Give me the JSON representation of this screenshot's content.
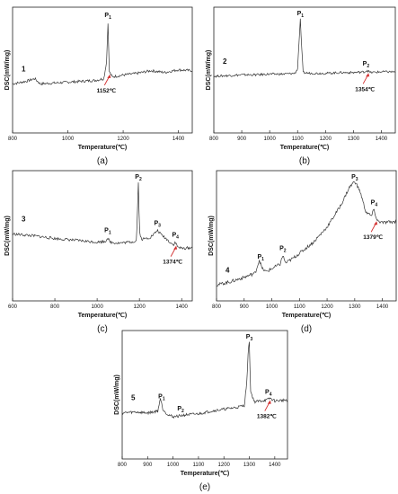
{
  "chart_data": [
    {
      "type": "line",
      "panel_label": "(a)",
      "series_label": "1",
      "xlabel": "Temperature(℃)",
      "ylabel": "DSC(mW/mg)",
      "xlim": [
        800,
        1450
      ],
      "xticks": [
        "800",
        "1000",
        "1200",
        "1400"
      ],
      "peaks": [
        {
          "label": "P1",
          "x": 1145,
          "sub": "1"
        }
      ],
      "annotations": [
        {
          "text": "1152℃",
          "x": 1152
        }
      ],
      "series": [
        {
          "x": [
            800,
            850,
            880,
            900,
            950,
            1000,
            1050,
            1100,
            1130,
            1140,
            1145,
            1150,
            1160,
            1200,
            1250,
            1300,
            1350,
            1400,
            1450
          ],
          "y": [
            0.3,
            0.33,
            0.36,
            0.3,
            0.31,
            0.32,
            0.33,
            0.34,
            0.36,
            0.55,
            1.0,
            0.44,
            0.38,
            0.4,
            0.42,
            0.45,
            0.43,
            0.46,
            0.45
          ]
        }
      ]
    },
    {
      "type": "line",
      "panel_label": "(b)",
      "series_label": "2",
      "xlabel": "Temperature(℃)",
      "ylabel": "DSC(mW/mg)",
      "xlim": [
        800,
        1450
      ],
      "xticks": [
        "800",
        "900",
        "1000",
        "1100",
        "1200",
        "1300",
        "1400"
      ],
      "peaks": [
        {
          "label": "P1",
          "x": 1110,
          "sub": "1"
        },
        {
          "label": "P2",
          "x": 1345,
          "sub": "2"
        }
      ],
      "annotations": [
        {
          "text": "1354℃",
          "x": 1354
        }
      ],
      "series": [
        {
          "x": [
            800,
            850,
            900,
            950,
            1000,
            1050,
            1090,
            1100,
            1105,
            1110,
            1115,
            1120,
            1150,
            1200,
            1250,
            1300,
            1340,
            1350,
            1360,
            1400,
            1450
          ],
          "y": [
            0.25,
            0.26,
            0.27,
            0.27,
            0.28,
            0.28,
            0.29,
            0.35,
            0.7,
            1.0,
            0.6,
            0.3,
            0.29,
            0.29,
            0.3,
            0.3,
            0.31,
            0.33,
            0.3,
            0.31,
            0.31
          ]
        }
      ]
    },
    {
      "type": "line",
      "panel_label": "(c)",
      "series_label": "3",
      "xlabel": "Temperature(℃)",
      "ylabel": "DSC(mW/mg)",
      "xlim": [
        600,
        1450
      ],
      "xticks": [
        "600",
        "800",
        "1000",
        "1200",
        "1400"
      ],
      "peaks": [
        {
          "label": "P1",
          "x": 1050,
          "sub": "1"
        },
        {
          "label": "P2",
          "x": 1195,
          "sub": "2"
        },
        {
          "label": "P3",
          "x": 1285,
          "sub": "3"
        },
        {
          "label": "P4",
          "x": 1370,
          "sub": "4"
        }
      ],
      "annotations": [
        {
          "text": "1374℃",
          "x": 1374
        }
      ],
      "series": [
        {
          "x": [
            600,
            700,
            800,
            900,
            1000,
            1040,
            1050,
            1060,
            1100,
            1150,
            1185,
            1190,
            1195,
            1200,
            1210,
            1250,
            1270,
            1285,
            1300,
            1330,
            1360,
            1370,
            1380,
            1400,
            1450
          ],
          "y": [
            0.42,
            0.4,
            0.37,
            0.35,
            0.33,
            0.34,
            0.38,
            0.33,
            0.32,
            0.33,
            0.34,
            0.6,
            1.0,
            0.45,
            0.36,
            0.38,
            0.42,
            0.46,
            0.42,
            0.36,
            0.3,
            0.33,
            0.28,
            0.26,
            0.27
          ]
        }
      ]
    },
    {
      "type": "line",
      "panel_label": "(d)",
      "series_label": "4",
      "xlabel": "Temperature(℃)",
      "ylabel": "DSC(mW/mg)",
      "xlim": [
        800,
        1450
      ],
      "xticks": [
        "800",
        "900",
        "1000",
        "1100",
        "1200",
        "1300",
        "1400"
      ],
      "peaks": [
        {
          "label": "P1",
          "x": 960,
          "sub": "1"
        },
        {
          "label": "P2",
          "x": 1040,
          "sub": "2"
        },
        {
          "label": "P3",
          "x": 1300,
          "sub": "3"
        },
        {
          "label": "P4",
          "x": 1370,
          "sub": "4"
        }
      ],
      "annotations": [
        {
          "text": "1379℃",
          "x": 1379
        }
      ],
      "series": [
        {
          "x": [
            800,
            850,
            900,
            940,
            955,
            965,
            980,
            1000,
            1030,
            1040,
            1050,
            1080,
            1100,
            1150,
            1200,
            1250,
            1280,
            1300,
            1320,
            1340,
            1360,
            1370,
            1380,
            1400,
            1450
          ],
          "y": [
            0.05,
            0.08,
            0.12,
            0.16,
            0.28,
            0.2,
            0.17,
            0.2,
            0.24,
            0.32,
            0.25,
            0.3,
            0.34,
            0.44,
            0.58,
            0.78,
            0.94,
            1.0,
            0.9,
            0.72,
            0.68,
            0.74,
            0.64,
            0.62,
            0.63
          ]
        }
      ]
    },
    {
      "type": "line",
      "panel_label": "(e)",
      "series_label": "5",
      "xlabel": "Temperature(℃)",
      "ylabel": "DSC(mW/mg)",
      "xlim": [
        800,
        1450
      ],
      "xticks": [
        "800",
        "900",
        "1000",
        "1100",
        "1200",
        "1300",
        "1400"
      ],
      "peaks": [
        {
          "label": "P1",
          "x": 955,
          "sub": "1"
        },
        {
          "label": "P2",
          "x": 1030,
          "sub": "2"
        },
        {
          "label": "P3",
          "x": 1300,
          "sub": "3"
        },
        {
          "label": "P4",
          "x": 1375,
          "sub": "4"
        }
      ],
      "annotations": [
        {
          "text": "1382℃",
          "x": 1382
        }
      ],
      "series": [
        {
          "x": [
            800,
            850,
            900,
            940,
            950,
            960,
            980,
            1000,
            1030,
            1050,
            1100,
            1150,
            1200,
            1250,
            1280,
            1290,
            1295,
            1300,
            1305,
            1320,
            1370,
            1380,
            1400,
            1450
          ],
          "y": [
            0.22,
            0.23,
            0.22,
            0.24,
            0.38,
            0.26,
            0.2,
            0.18,
            0.19,
            0.2,
            0.21,
            0.24,
            0.26,
            0.28,
            0.3,
            0.55,
            0.85,
            1.0,
            0.45,
            0.34,
            0.36,
            0.38,
            0.35,
            0.36
          ]
        }
      ]
    }
  ]
}
